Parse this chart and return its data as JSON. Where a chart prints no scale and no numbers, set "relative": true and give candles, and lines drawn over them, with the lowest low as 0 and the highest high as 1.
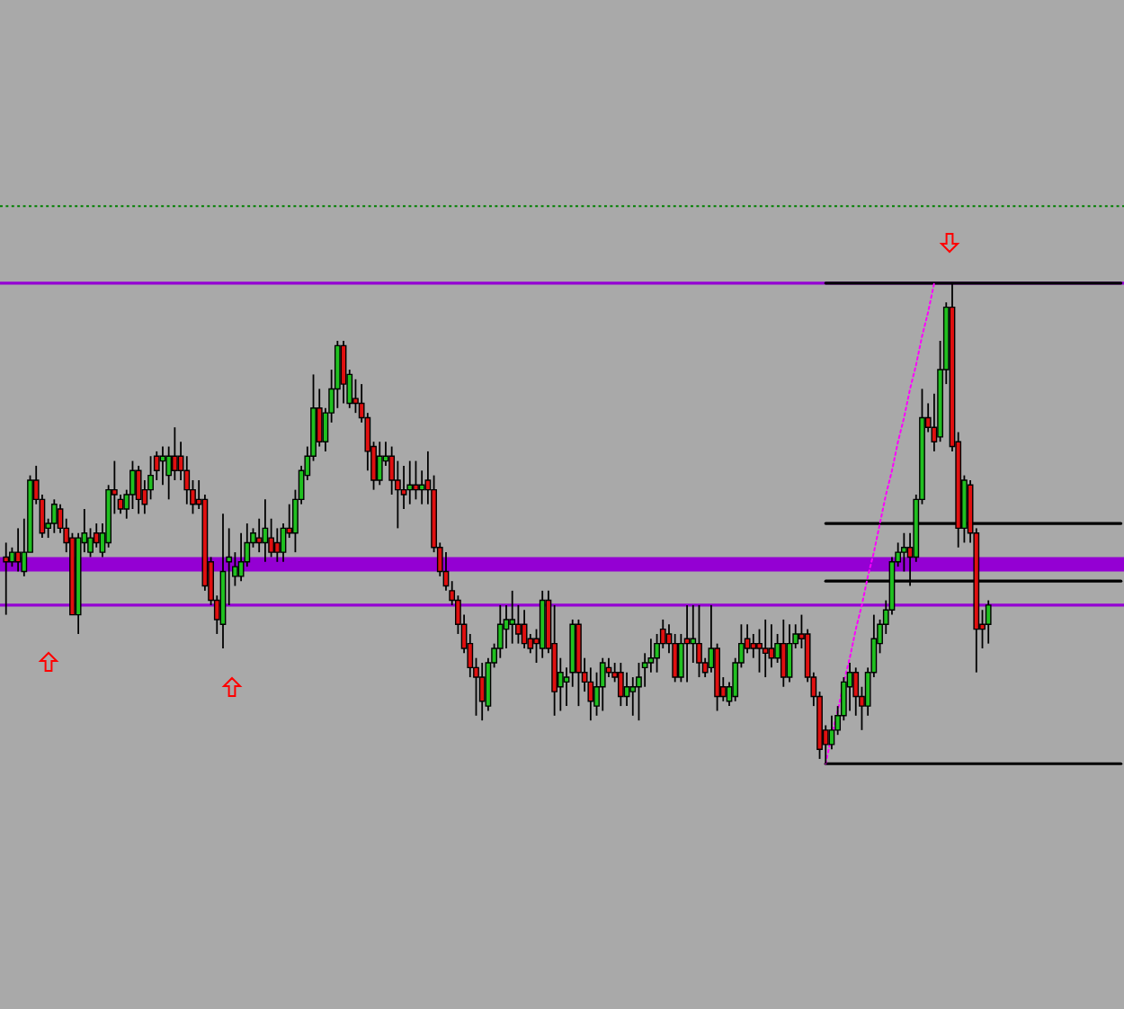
{
  "chart_data": {
    "type": "candlestick",
    "relative": true,
    "categories": [
      null,
      null,
      null,
      null,
      null,
      null,
      null,
      null,
      null,
      null,
      null,
      null,
      null,
      null,
      null,
      null,
      null,
      null,
      null,
      null,
      null,
      null,
      null,
      null,
      null,
      null,
      null,
      null,
      null,
      null,
      null,
      null,
      null,
      null,
      null,
      null,
      null,
      null,
      null,
      null,
      null,
      null,
      null,
      null,
      null,
      null,
      null,
      null,
      null,
      null,
      null,
      null,
      null,
      null,
      null,
      null,
      null,
      null,
      null,
      null,
      null,
      null,
      null,
      null,
      null,
      null,
      null,
      null,
      null,
      null,
      null,
      null,
      null,
      null,
      null,
      null,
      null,
      null,
      null,
      null,
      null,
      null,
      null,
      null,
      null,
      null,
      null,
      null,
      null,
      null,
      null,
      null,
      null,
      null,
      null,
      null,
      null,
      null,
      null,
      null,
      null,
      null,
      null,
      null,
      null,
      null,
      null,
      null,
      null,
      null,
      null,
      null,
      null,
      null,
      null,
      null,
      null,
      null,
      null,
      null,
      null,
      null,
      null,
      null,
      null,
      null,
      null,
      null,
      null,
      null,
      null,
      null,
      null,
      null,
      null,
      null,
      null,
      null,
      null,
      null,
      null,
      null,
      null,
      null,
      null,
      null,
      null,
      null,
      null,
      null,
      null,
      null,
      null,
      null,
      null,
      null,
      null,
      null,
      null,
      null,
      null,
      null,
      null,
      null,
      null,
      null,
      null,
      null,
      null,
      null,
      null,
      null,
      null,
      null,
      null,
      null,
      null,
      null,
      null,
      null,
      null,
      null,
      null,
      null,
      null,
      null
    ],
    "ohlc": [
      [
        0.43,
        0.46,
        0.31,
        0.42
      ],
      [
        0.42,
        0.45,
        0.41,
        0.44
      ],
      [
        0.44,
        0.49,
        0.4,
        0.42
      ],
      [
        0.4,
        0.51,
        0.39,
        0.44
      ],
      [
        0.44,
        0.6,
        0.44,
        0.59
      ],
      [
        0.59,
        0.62,
        0.54,
        0.55
      ],
      [
        0.55,
        0.56,
        0.47,
        0.48
      ],
      [
        0.49,
        0.51,
        0.47,
        0.5
      ],
      [
        0.5,
        0.55,
        0.48,
        0.54
      ],
      [
        0.53,
        0.54,
        0.48,
        0.49
      ],
      [
        0.49,
        0.51,
        0.44,
        0.46
      ],
      [
        0.47,
        0.48,
        0.31,
        0.31
      ],
      [
        0.31,
        0.48,
        0.27,
        0.47
      ],
      [
        0.46,
        0.53,
        0.44,
        0.48
      ],
      [
        0.44,
        0.49,
        0.43,
        0.47
      ],
      [
        0.48,
        0.5,
        0.45,
        0.46
      ],
      [
        0.44,
        0.5,
        0.43,
        0.48
      ],
      [
        0.46,
        0.58,
        0.45,
        0.57
      ],
      [
        0.57,
        0.63,
        0.52,
        0.56
      ],
      [
        0.55,
        0.56,
        0.52,
        0.53
      ],
      [
        0.53,
        0.57,
        0.51,
        0.56
      ],
      [
        0.56,
        0.63,
        0.53,
        0.61
      ],
      [
        0.61,
        0.62,
        0.52,
        0.55
      ],
      [
        0.57,
        0.59,
        0.52,
        0.54
      ],
      [
        0.57,
        0.64,
        0.55,
        0.6
      ],
      [
        0.64,
        0.65,
        0.59,
        0.61
      ],
      [
        0.63,
        0.66,
        0.58,
        0.64
      ],
      [
        0.6,
        0.66,
        0.55,
        0.64
      ],
      [
        0.64,
        0.7,
        0.59,
        0.61
      ],
      [
        0.64,
        0.67,
        0.59,
        0.61
      ],
      [
        0.61,
        0.64,
        0.54,
        0.57
      ],
      [
        0.57,
        0.59,
        0.52,
        0.54
      ],
      [
        0.55,
        0.59,
        0.53,
        0.54
      ],
      [
        0.55,
        0.56,
        0.36,
        0.37
      ],
      [
        0.42,
        0.43,
        0.33,
        0.34
      ],
      [
        0.34,
        0.35,
        0.27,
        0.3
      ],
      [
        0.29,
        0.52,
        0.24,
        0.4
      ],
      [
        0.42,
        0.49,
        0.33,
        0.43
      ],
      [
        0.39,
        0.44,
        0.37,
        0.41
      ],
      [
        0.39,
        0.48,
        0.38,
        0.42
      ],
      [
        0.42,
        0.5,
        0.41,
        0.46
      ],
      [
        0.46,
        0.49,
        0.45,
        0.48
      ],
      [
        0.47,
        0.51,
        0.44,
        0.46
      ],
      [
        0.46,
        0.55,
        0.42,
        0.49
      ],
      [
        0.47,
        0.51,
        0.43,
        0.44
      ],
      [
        0.46,
        0.49,
        0.42,
        0.44
      ],
      [
        0.44,
        0.5,
        0.42,
        0.49
      ],
      [
        0.49,
        0.54,
        0.47,
        0.48
      ],
      [
        0.48,
        0.57,
        0.44,
        0.55
      ],
      [
        0.55,
        0.62,
        0.54,
        0.61
      ],
      [
        0.6,
        0.66,
        0.59,
        0.64
      ],
      [
        0.64,
        0.81,
        0.63,
        0.74
      ],
      [
        0.74,
        0.78,
        0.66,
        0.67
      ],
      [
        0.67,
        0.74,
        0.65,
        0.73
      ],
      [
        0.73,
        0.82,
        0.71,
        0.78
      ],
      [
        0.78,
        0.88,
        0.74,
        0.87
      ],
      [
        0.87,
        0.88,
        0.75,
        0.79
      ],
      [
        0.75,
        0.82,
        0.74,
        0.81
      ],
      [
        0.76,
        0.8,
        0.73,
        0.75
      ],
      [
        0.75,
        0.79,
        0.71,
        0.72
      ],
      [
        0.72,
        0.73,
        0.61,
        0.65
      ],
      [
        0.66,
        0.67,
        0.57,
        0.59
      ],
      [
        0.59,
        0.67,
        0.58,
        0.64
      ],
      [
        0.63,
        0.67,
        0.62,
        0.64
      ],
      [
        0.64,
        0.66,
        0.56,
        0.59
      ],
      [
        0.59,
        0.63,
        0.49,
        0.57
      ],
      [
        0.57,
        0.62,
        0.53,
        0.56
      ],
      [
        0.57,
        0.63,
        0.54,
        0.58
      ],
      [
        0.58,
        0.63,
        0.55,
        0.57
      ],
      [
        0.57,
        0.61,
        0.54,
        0.58
      ],
      [
        0.59,
        0.65,
        0.54,
        0.57
      ],
      [
        0.57,
        0.6,
        0.44,
        0.45
      ],
      [
        0.45,
        0.46,
        0.39,
        0.4
      ],
      [
        0.4,
        0.44,
        0.36,
        0.37
      ],
      [
        0.36,
        0.38,
        0.33,
        0.34
      ],
      [
        0.34,
        0.35,
        0.27,
        0.29
      ],
      [
        0.29,
        0.31,
        0.23,
        0.24
      ],
      [
        0.25,
        0.27,
        0.18,
        0.2
      ],
      [
        0.2,
        0.22,
        0.1,
        0.18
      ],
      [
        0.18,
        0.21,
        0.09,
        0.13
      ],
      [
        0.12,
        0.22,
        0.11,
        0.21
      ],
      [
        0.21,
        0.25,
        0.2,
        0.24
      ],
      [
        0.24,
        0.33,
        0.22,
        0.29
      ],
      [
        0.28,
        0.33,
        0.24,
        0.3
      ],
      [
        0.29,
        0.36,
        0.25,
        0.3
      ],
      [
        0.29,
        0.33,
        0.25,
        0.27
      ],
      [
        0.29,
        0.32,
        0.24,
        0.25
      ],
      [
        0.26,
        0.27,
        0.23,
        0.24
      ],
      [
        0.26,
        0.28,
        0.21,
        0.25
      ],
      [
        0.24,
        0.36,
        0.22,
        0.34
      ],
      [
        0.34,
        0.36,
        0.23,
        0.24
      ],
      [
        0.25,
        0.33,
        0.1,
        0.15
      ],
      [
        0.16,
        0.22,
        0.11,
        0.19
      ],
      [
        0.17,
        0.2,
        0.12,
        0.18
      ],
      [
        0.19,
        0.3,
        0.16,
        0.29
      ],
      [
        0.29,
        0.3,
        0.12,
        0.19
      ],
      [
        0.19,
        0.22,
        0.15,
        0.17
      ],
      [
        0.17,
        0.2,
        0.09,
        0.13
      ],
      [
        0.12,
        0.19,
        0.1,
        0.16
      ],
      [
        0.16,
        0.22,
        0.11,
        0.21
      ],
      [
        0.2,
        0.22,
        0.18,
        0.19
      ],
      [
        0.19,
        0.21,
        0.17,
        0.18
      ],
      [
        0.19,
        0.21,
        0.12,
        0.14
      ],
      [
        0.14,
        0.19,
        0.12,
        0.16
      ],
      [
        0.15,
        0.18,
        0.1,
        0.16
      ],
      [
        0.16,
        0.21,
        0.09,
        0.18
      ],
      [
        0.2,
        0.23,
        0.16,
        0.21
      ],
      [
        0.21,
        0.26,
        0.19,
        0.22
      ],
      [
        0.22,
        0.27,
        0.19,
        0.25
      ],
      [
        0.28,
        0.3,
        0.24,
        0.25
      ],
      [
        0.27,
        0.29,
        0.23,
        0.25
      ],
      [
        0.25,
        0.27,
        0.17,
        0.18
      ],
      [
        0.18,
        0.27,
        0.17,
        0.25
      ],
      [
        0.26,
        0.33,
        0.17,
        0.25
      ],
      [
        0.25,
        0.33,
        0.21,
        0.26
      ],
      [
        0.25,
        0.33,
        0.18,
        0.21
      ],
      [
        0.21,
        0.22,
        0.18,
        0.19
      ],
      [
        0.2,
        0.33,
        0.19,
        0.24
      ],
      [
        0.24,
        0.25,
        0.11,
        0.14
      ],
      [
        0.16,
        0.18,
        0.13,
        0.14
      ],
      [
        0.13,
        0.17,
        0.12,
        0.16
      ],
      [
        0.14,
        0.22,
        0.13,
        0.21
      ],
      [
        0.21,
        0.29,
        0.2,
        0.25
      ],
      [
        0.26,
        0.29,
        0.23,
        0.24
      ],
      [
        0.25,
        0.27,
        0.22,
        0.24
      ],
      [
        0.25,
        0.28,
        0.19,
        0.24
      ],
      [
        0.24,
        0.3,
        0.18,
        0.23
      ],
      [
        0.24,
        0.29,
        0.2,
        0.22
      ],
      [
        0.22,
        0.27,
        0.21,
        0.25
      ],
      [
        0.25,
        0.3,
        0.16,
        0.18
      ],
      [
        0.18,
        0.29,
        0.17,
        0.25
      ],
      [
        0.25,
        0.29,
        0.24,
        0.27
      ],
      [
        0.27,
        0.31,
        0.24,
        0.26
      ],
      [
        0.27,
        0.28,
        0.17,
        0.18
      ],
      [
        0.18,
        0.19,
        0.12,
        0.14
      ],
      [
        0.14,
        0.15,
        0.01,
        0.03
      ],
      [
        0.07,
        0.08,
        0.0,
        0.04
      ],
      [
        0.04,
        0.1,
        0.03,
        0.07
      ],
      [
        0.07,
        0.12,
        0.06,
        0.1
      ],
      [
        0.1,
        0.18,
        0.09,
        0.17
      ],
      [
        0.16,
        0.21,
        0.11,
        0.19
      ],
      [
        0.19,
        0.2,
        0.1,
        0.14
      ],
      [
        0.14,
        0.16,
        0.07,
        0.12
      ],
      [
        0.12,
        0.2,
        0.1,
        0.19
      ],
      [
        0.19,
        0.31,
        0.18,
        0.26
      ],
      [
        0.25,
        0.3,
        0.23,
        0.29
      ],
      [
        0.29,
        0.34,
        0.27,
        0.32
      ],
      [
        0.32,
        0.43,
        0.31,
        0.42
      ],
      [
        0.42,
        0.46,
        0.41,
        0.44
      ],
      [
        0.44,
        0.48,
        0.4,
        0.45
      ],
      [
        0.45,
        0.48,
        0.37,
        0.43
      ],
      [
        0.43,
        0.56,
        0.42,
        0.55
      ],
      [
        0.55,
        0.78,
        0.54,
        0.72
      ],
      [
        0.72,
        0.75,
        0.69,
        0.7
      ],
      [
        0.7,
        0.77,
        0.65,
        0.67
      ],
      [
        0.68,
        0.88,
        0.67,
        0.82
      ],
      [
        0.82,
        0.96,
        0.79,
        0.95
      ],
      [
        0.95,
        1.0,
        0.65,
        0.66
      ],
      [
        0.67,
        0.69,
        0.45,
        0.49
      ],
      [
        0.49,
        0.6,
        0.46,
        0.59
      ],
      [
        0.58,
        0.59,
        0.46,
        0.48
      ],
      [
        0.48,
        0.49,
        0.19,
        0.28
      ],
      [
        0.29,
        0.32,
        0.24,
        0.28
      ],
      [
        0.29,
        0.34,
        0.25,
        0.33
      ],
      null,
      null,
      null,
      null,
      null,
      null,
      null,
      null,
      null,
      null,
      null,
      null,
      null,
      null,
      null,
      null,
      null,
      null,
      null,
      null,
      null,
      null
    ],
    "colors": [
      "#e01010",
      "#20c020",
      "#e01010",
      "#20c020",
      "#20c020",
      "#e01010",
      "#e01010",
      "#20c020",
      "#20c020",
      "#e01010",
      "#e01010",
      "#e01010",
      "#20c020",
      "#20c020",
      "#20c020",
      "#e01010",
      "#20c020",
      "#20c020",
      "#e01010",
      "#e01010",
      "#20c020",
      "#20c020",
      "#e01010",
      "#e01010",
      "#20c020",
      "#e01010",
      "#20c020",
      "#20c020",
      "#e01010",
      "#e01010",
      "#e01010",
      "#e01010",
      "#e01010",
      "#e01010",
      "#e01010",
      "#e01010",
      "#20c020",
      "#20c020",
      "#20c020",
      "#20c020",
      "#20c020",
      "#20c020",
      "#e01010",
      "#20c020",
      "#e01010",
      "#e01010",
      "#20c020",
      "#e01010",
      "#20c020",
      "#20c020",
      "#20c020",
      "#20c020",
      "#e01010",
      "#20c020",
      "#20c020",
      "#20c020",
      "#e01010",
      "#20c020",
      "#e01010",
      "#e01010",
      "#e01010",
      "#e01010",
      "#20c020",
      "#20c020",
      "#e01010",
      "#e01010",
      "#e01010",
      "#20c020",
      "#e01010",
      "#20c020",
      "#e01010",
      "#e01010",
      "#e01010",
      "#e01010",
      "#e01010",
      "#e01010",
      "#e01010",
      "#e01010",
      "#e01010",
      "#e01010",
      "#20c020",
      "#20c020",
      "#20c020",
      "#20c020",
      "#20c020",
      "#e01010",
      "#e01010",
      "#e01010",
      "#e01010",
      "#20c020",
      "#e01010",
      "#e01010",
      "#20c020",
      "#20c020",
      "#20c020",
      "#e01010",
      "#e01010",
      "#e01010",
      "#20c020",
      "#20c020",
      "#e01010",
      "#e01010",
      "#e01010",
      "#20c020",
      "#20c020",
      "#20c020",
      "#20c020",
      "#20c020",
      "#20c020",
      "#e01010",
      "#e01010",
      "#e01010",
      "#20c020",
      "#e01010",
      "#20c020",
      "#e01010",
      "#e01010",
      "#20c020",
      "#e01010",
      "#e01010",
      "#20c020",
      "#20c020",
      "#20c020",
      "#e01010",
      "#e01010",
      "#e01010",
      "#e01010",
      "#e01010",
      "#20c020",
      "#e01010",
      "#20c020",
      "#20c020",
      "#e01010",
      "#e01010",
      "#e01010",
      "#e01010",
      "#e01010",
      "#20c020",
      "#20c020",
      "#20c020",
      "#20c020",
      "#e01010",
      "#e01010",
      "#20c020",
      "#20c020",
      "#20c020",
      "#20c020",
      "#20c020",
      "#20c020",
      "#20c020",
      "#e01010",
      "#20c020",
      "#20c020",
      "#e01010",
      "#e01010",
      "#20c020",
      "#20c020",
      "#e01010",
      "#e01010",
      "#20c020",
      "#e01010",
      "#e01010",
      "#e01010",
      "#20c020",
      null,
      null,
      null,
      null,
      null,
      null,
      null,
      null,
      null,
      null,
      null,
      null,
      null,
      null,
      null,
      null,
      null,
      null,
      null,
      null,
      null,
      null
    ],
    "ref_lines": [
      {
        "axis": "y",
        "value": 1.16,
        "color": "#008000",
        "line_style": "dotted"
      },
      {
        "axis": "y",
        "value": 1,
        "color": "#9400d3"
      },
      {
        "axis": "y",
        "value": 0.33,
        "color": "#9400d3"
      }
    ],
    "bands": [
      {
        "axis": "y",
        "from": 0.4,
        "to": 0.43,
        "color": "#9400d3"
      }
    ],
    "series": [
      {
        "type": "line",
        "color": "#000000",
        "values": [
          null,
          null,
          null,
          null,
          null,
          null,
          null,
          null,
          null,
          null,
          null,
          null,
          null,
          null,
          null,
          null,
          null,
          null,
          null,
          null,
          null,
          null,
          null,
          null,
          null,
          null,
          null,
          null,
          null,
          null,
          null,
          null,
          null,
          null,
          null,
          null,
          null,
          null,
          null,
          null,
          null,
          null,
          null,
          null,
          null,
          null,
          null,
          null,
          null,
          null,
          null,
          null,
          null,
          null,
          null,
          null,
          null,
          null,
          null,
          null,
          null,
          null,
          null,
          null,
          null,
          null,
          null,
          null,
          null,
          null,
          null,
          null,
          null,
          null,
          null,
          null,
          null,
          null,
          null,
          null,
          null,
          null,
          null,
          null,
          null,
          null,
          null,
          null,
          null,
          null,
          null,
          null,
          null,
          null,
          null,
          null,
          null,
          null,
          null,
          null,
          null,
          null,
          null,
          null,
          null,
          null,
          null,
          null,
          null,
          null,
          null,
          null,
          null,
          null,
          null,
          null,
          null,
          null,
          null,
          null,
          null,
          null,
          null,
          null,
          null,
          null,
          null,
          null,
          null,
          null,
          null,
          null,
          null,
          null,
          null,
          null,
          0,
          0,
          0,
          0,
          0,
          0,
          0,
          0,
          0,
          0,
          0,
          0,
          0,
          0,
          0,
          0,
          0,
          0,
          0,
          0,
          0,
          0,
          0,
          0,
          0,
          0,
          0,
          0,
          0,
          0,
          0,
          0,
          0,
          0,
          0,
          0,
          0,
          0,
          0,
          0,
          0,
          0,
          0,
          0,
          0,
          0,
          0,
          0,
          0,
          0
        ]
      },
      {
        "type": "line",
        "color": "#000000",
        "values": [
          null,
          null,
          null,
          null,
          null,
          null,
          null,
          null,
          null,
          null,
          null,
          null,
          null,
          null,
          null,
          null,
          null,
          null,
          null,
          null,
          null,
          null,
          null,
          null,
          null,
          null,
          null,
          null,
          null,
          null,
          null,
          null,
          null,
          null,
          null,
          null,
          null,
          null,
          null,
          null,
          null,
          null,
          null,
          null,
          null,
          null,
          null,
          null,
          null,
          null,
          null,
          null,
          null,
          null,
          null,
          null,
          null,
          null,
          null,
          null,
          null,
          null,
          null,
          null,
          null,
          null,
          null,
          null,
          null,
          null,
          null,
          null,
          null,
          null,
          null,
          null,
          null,
          null,
          null,
          null,
          null,
          null,
          null,
          null,
          null,
          null,
          null,
          null,
          null,
          null,
          null,
          null,
          null,
          null,
          null,
          null,
          null,
          null,
          null,
          null,
          null,
          null,
          null,
          null,
          null,
          null,
          null,
          null,
          null,
          null,
          null,
          null,
          null,
          null,
          null,
          null,
          null,
          null,
          null,
          null,
          null,
          null,
          null,
          null,
          null,
          null,
          null,
          null,
          null,
          null,
          null,
          null,
          null,
          null,
          null,
          null,
          0.38,
          0.38,
          0.38,
          0.38,
          0.38,
          0.38,
          0.38,
          0.38,
          0.38,
          0.38,
          0.38,
          0.38,
          0.38,
          0.38,
          0.38,
          0.38,
          0.38,
          0.38,
          0.38,
          0.38,
          0.38,
          0.38,
          0.38,
          0.38,
          0.38,
          0.38,
          0.38,
          0.38,
          0.38,
          0.38,
          0.38,
          0.38,
          0.38,
          0.38,
          0.38,
          0.38,
          0.38,
          0.38,
          0.38,
          0.38,
          0.38,
          0.38,
          0.38,
          0.38,
          0.38,
          0.38,
          0.38,
          0.38,
          0.38,
          0.38
        ]
      },
      {
        "type": "line",
        "color": "#000000",
        "values": [
          null,
          null,
          null,
          null,
          null,
          null,
          null,
          null,
          null,
          null,
          null,
          null,
          null,
          null,
          null,
          null,
          null,
          null,
          null,
          null,
          null,
          null,
          null,
          null,
          null,
          null,
          null,
          null,
          null,
          null,
          null,
          null,
          null,
          null,
          null,
          null,
          null,
          null,
          null,
          null,
          null,
          null,
          null,
          null,
          null,
          null,
          null,
          null,
          null,
          null,
          null,
          null,
          null,
          null,
          null,
          null,
          null,
          null,
          null,
          null,
          null,
          null,
          null,
          null,
          null,
          null,
          null,
          null,
          null,
          null,
          null,
          null,
          null,
          null,
          null,
          null,
          null,
          null,
          null,
          null,
          null,
          null,
          null,
          null,
          null,
          null,
          null,
          null,
          null,
          null,
          null,
          null,
          null,
          null,
          null,
          null,
          null,
          null,
          null,
          null,
          null,
          null,
          null,
          null,
          null,
          null,
          null,
          null,
          null,
          null,
          null,
          null,
          null,
          null,
          null,
          null,
          null,
          null,
          null,
          null,
          null,
          null,
          null,
          null,
          null,
          null,
          null,
          null,
          null,
          null,
          null,
          null,
          null,
          null,
          null,
          null,
          0.5,
          0.5,
          0.5,
          0.5,
          0.5,
          0.5,
          0.5,
          0.5,
          0.5,
          0.5,
          0.5,
          0.5,
          0.5,
          0.5,
          0.5,
          0.5,
          0.5,
          0.5,
          0.5,
          0.5,
          0.5,
          0.5,
          0.5,
          0.5,
          0.5,
          0.5,
          0.5,
          0.5,
          0.5,
          0.5,
          0.5,
          0.5,
          0.5,
          0.5,
          0.5,
          0.5,
          0.5,
          0.5,
          0.5,
          0.5,
          0.5,
          0.5,
          0.5,
          0.5,
          0.5,
          0.5,
          0.5,
          0.5,
          0.5,
          0.5
        ]
      },
      {
        "type": "line",
        "color": "#000000",
        "values": [
          null,
          null,
          null,
          null,
          null,
          null,
          null,
          null,
          null,
          null,
          null,
          null,
          null,
          null,
          null,
          null,
          null,
          null,
          null,
          null,
          null,
          null,
          null,
          null,
          null,
          null,
          null,
          null,
          null,
          null,
          null,
          null,
          null,
          null,
          null,
          null,
          null,
          null,
          null,
          null,
          null,
          null,
          null,
          null,
          null,
          null,
          null,
          null,
          null,
          null,
          null,
          null,
          null,
          null,
          null,
          null,
          null,
          null,
          null,
          null,
          null,
          null,
          null,
          null,
          null,
          null,
          null,
          null,
          null,
          null,
          null,
          null,
          null,
          null,
          null,
          null,
          null,
          null,
          null,
          null,
          null,
          null,
          null,
          null,
          null,
          null,
          null,
          null,
          null,
          null,
          null,
          null,
          null,
          null,
          null,
          null,
          null,
          null,
          null,
          null,
          null,
          null,
          null,
          null,
          null,
          null,
          null,
          null,
          null,
          null,
          null,
          null,
          null,
          null,
          null,
          null,
          null,
          null,
          null,
          null,
          null,
          null,
          null,
          null,
          null,
          null,
          null,
          null,
          null,
          null,
          null,
          null,
          null,
          null,
          null,
          null,
          1,
          1,
          1,
          1,
          1,
          1,
          1,
          1,
          1,
          1,
          1,
          1,
          1,
          1,
          1,
          1,
          1,
          1,
          1,
          1,
          1,
          1,
          1,
          1,
          1,
          1,
          1,
          1,
          1,
          1,
          1,
          1,
          1,
          1,
          1,
          1,
          1,
          1,
          1,
          1,
          1,
          1,
          1,
          1,
          1,
          1,
          1,
          1,
          1,
          1
        ]
      },
      {
        "type": "line",
        "color": "#ff00ff",
        "line_style": "dotted",
        "values": [
          null,
          null,
          null,
          null,
          null,
          null,
          null,
          null,
          null,
          null,
          null,
          null,
          null,
          null,
          null,
          null,
          null,
          null,
          null,
          null,
          null,
          null,
          null,
          null,
          null,
          null,
          null,
          null,
          null,
          null,
          null,
          null,
          null,
          null,
          null,
          null,
          null,
          null,
          null,
          null,
          null,
          null,
          null,
          null,
          null,
          null,
          null,
          null,
          null,
          null,
          null,
          null,
          null,
          null,
          null,
          null,
          null,
          null,
          null,
          null,
          null,
          null,
          null,
          null,
          null,
          null,
          null,
          null,
          null,
          null,
          null,
          null,
          null,
          null,
          null,
          null,
          null,
          null,
          null,
          null,
          null,
          null,
          null,
          null,
          null,
          null,
          null,
          null,
          null,
          null,
          null,
          null,
          null,
          null,
          null,
          null,
          null,
          null,
          null,
          null,
          null,
          null,
          null,
          null,
          null,
          null,
          null,
          null,
          null,
          null,
          null,
          null,
          null,
          null,
          null,
          null,
          null,
          null,
          null,
          null,
          null,
          null,
          null,
          null,
          null,
          null,
          null,
          null,
          null,
          null,
          null,
          null,
          null,
          null,
          null,
          null,
          0,
          0.06,
          0.11,
          0.17,
          0.22,
          0.28,
          0.33,
          0.39,
          0.44,
          0.5,
          0.56,
          0.61,
          0.67,
          0.72,
          0.78,
          0.83,
          0.89,
          0.94,
          1,
          null,
          null,
          null,
          null,
          null,
          null,
          null,
          null,
          null,
          null,
          null,
          null,
          null,
          null,
          null,
          null,
          null,
          null,
          null,
          null,
          null,
          null,
          null,
          null,
          null,
          null,
          null,
          null,
          null,
          null,
          null
        ]
      }
    ]
  }
}
